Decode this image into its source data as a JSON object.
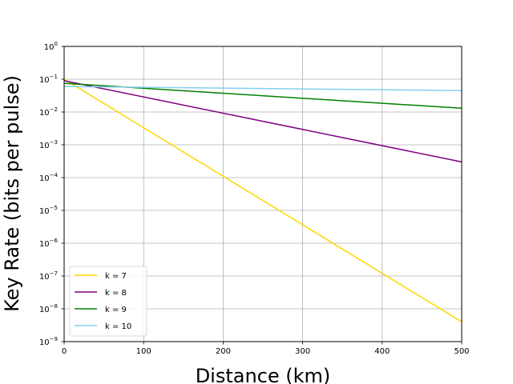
{
  "chart_data": {
    "type": "line",
    "title": "",
    "xlabel": "Distance (km)",
    "ylabel": "Key Rate (bits per pulse)",
    "xlim": [
      0,
      500
    ],
    "ylim": [
      1e-09,
      1
    ],
    "yscale": "log",
    "grid": true,
    "legend_position": "lower-left",
    "x_ticks": [
      "0",
      "100",
      "200",
      "300",
      "400",
      "500"
    ],
    "y_ticks": [
      {
        "base": "10",
        "exp": "−9"
      },
      {
        "base": "10",
        "exp": "−8"
      },
      {
        "base": "10",
        "exp": "−7"
      },
      {
        "base": "10",
        "exp": "−6"
      },
      {
        "base": "10",
        "exp": "−5"
      },
      {
        "base": "10",
        "exp": "−4"
      },
      {
        "base": "10",
        "exp": "−3"
      },
      {
        "base": "10",
        "exp": "−2"
      },
      {
        "base": "10",
        "exp": "−1"
      },
      {
        "base": "10",
        "exp": "0"
      }
    ],
    "series": [
      {
        "name": "k = 7",
        "color": "#ffd700",
        "x": [
          0,
          500
        ],
        "y": [
          0.1,
          4e-09
        ]
      },
      {
        "name": "k = 8",
        "color": "#800080",
        "x": [
          0,
          500
        ],
        "y": [
          0.09,
          0.0003
        ]
      },
      {
        "name": "k = 9",
        "color": "#008000",
        "x": [
          0,
          500
        ],
        "y": [
          0.075,
          0.013
        ]
      },
      {
        "name": "k = 10",
        "color": "#87ceeb",
        "x": [
          0,
          500
        ],
        "y": [
          0.06,
          0.045
        ]
      }
    ]
  }
}
